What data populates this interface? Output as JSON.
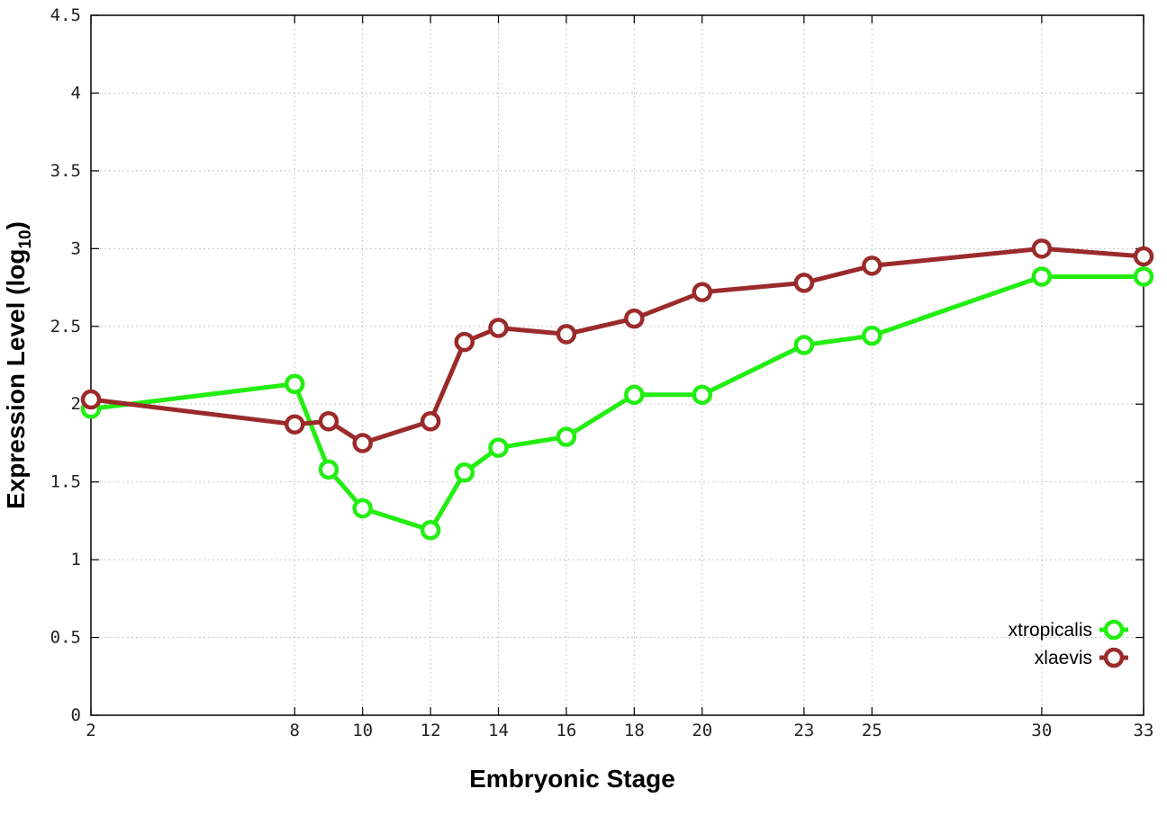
{
  "chart_data": {
    "type": "line",
    "xlabel": "Embryonic Stage",
    "ylabel_main": "Expression Level (log",
    "ylabel_sub": "10",
    "ylabel_close": ")",
    "xlim": [
      2,
      33
    ],
    "ylim": [
      0,
      4.5
    ],
    "x_ticks": [
      2,
      8,
      10,
      12,
      14,
      16,
      18,
      20,
      23,
      25,
      30,
      33
    ],
    "x_tick_labels": [
      "2",
      "8",
      "10",
      "12",
      "14",
      "16",
      "18",
      "20",
      "23",
      "25",
      "30",
      "33"
    ],
    "y_ticks": [
      0,
      0.5,
      1,
      1.5,
      2,
      2.5,
      3,
      3.5,
      4,
      4.5
    ],
    "y_tick_labels": [
      "0",
      "0.5",
      "1",
      "1.5",
      "2",
      "2.5",
      "3",
      "3.5",
      "4",
      "4.5"
    ],
    "grid": true,
    "legend_position": "bottom-right",
    "x": [
      2,
      8,
      9,
      10,
      12,
      13,
      14,
      16,
      18,
      20,
      23,
      25,
      30,
      33
    ],
    "series": [
      {
        "name": "xtropicalis",
        "color": "#22ee11",
        "values": [
          1.97,
          2.13,
          1.58,
          1.33,
          1.19,
          1.56,
          1.72,
          1.79,
          2.06,
          2.06,
          2.38,
          2.44,
          2.82,
          2.82
        ]
      },
      {
        "name": "xlaevis",
        "color": "#9b2b2b",
        "values": [
          2.03,
          1.87,
          1.89,
          1.75,
          1.89,
          2.4,
          2.49,
          2.45,
          2.55,
          2.72,
          2.78,
          2.89,
          3.0,
          2.95
        ]
      }
    ]
  }
}
